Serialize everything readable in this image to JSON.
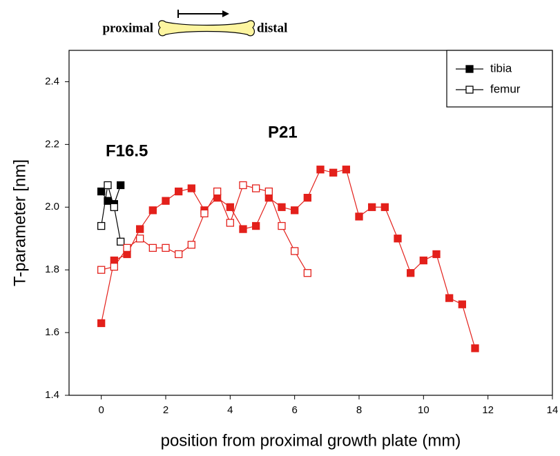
{
  "chart_data": {
    "type": "line",
    "header": {
      "left": "proximal",
      "right": "distal"
    },
    "xlabel": "position from proximal growth plate (mm)",
    "ylabel": "T-parameter [nm]",
    "xlim": [
      -1,
      14
    ],
    "ylim": [
      1.4,
      2.5
    ],
    "xticks": [
      0,
      2,
      4,
      6,
      8,
      10,
      12,
      14
    ],
    "yticks": [
      1.4,
      1.6,
      1.8,
      {
        "value": 2,
        "label": "2.0"
      },
      2.2,
      2.4
    ],
    "legend": [
      {
        "label": "tibia",
        "marker": "filled"
      },
      {
        "label": "femur",
        "marker": "open"
      }
    ],
    "annotations": [
      {
        "text": "F16.5",
        "color": "#000000"
      },
      {
        "text": "P21",
        "color": "#e3201b"
      }
    ],
    "series": [
      {
        "color": "#000000",
        "marker": "filled",
        "x": [
          0,
          0.2,
          0.4,
          0.6
        ],
        "values": [
          2.05,
          2.02,
          2.01,
          2.07
        ]
      },
      {
        "color": "#000000",
        "marker": "open",
        "x": [
          0,
          0.2,
          0.4,
          0.6
        ],
        "values": [
          1.94,
          2.07,
          2.0,
          1.89
        ]
      },
      {
        "color": "#e3201b",
        "marker": "filled",
        "x": [
          0,
          0.4,
          0.8,
          1.2,
          1.6,
          2.0,
          2.4,
          2.8,
          3.2,
          3.6,
          4.0,
          4.4,
          4.8,
          5.2,
          5.6,
          6.0,
          6.4,
          6.8,
          7.2,
          7.6,
          8.0,
          8.4,
          8.8,
          9.2,
          9.6,
          10.0,
          10.4,
          10.8,
          11.2,
          11.6
        ],
        "values": [
          1.63,
          1.83,
          1.85,
          1.93,
          1.99,
          2.02,
          2.05,
          2.06,
          1.99,
          2.03,
          2.0,
          1.93,
          1.94,
          2.03,
          2.0,
          1.99,
          2.03,
          2.12,
          2.11,
          2.12,
          1.97,
          2.0,
          2.0,
          1.9,
          1.79,
          1.83,
          1.85,
          1.71,
          1.69,
          1.55
        ]
      },
      {
        "color": "#e3201b",
        "marker": "open",
        "x": [
          0,
          0.4,
          0.8,
          1.2,
          1.6,
          2.0,
          2.4,
          2.8,
          3.2,
          3.6,
          4.0,
          4.4,
          4.8,
          5.2,
          5.6,
          6.0,
          6.4
        ],
        "values": [
          1.8,
          1.81,
          1.87,
          1.9,
          1.87,
          1.87,
          1.85,
          1.88,
          1.98,
          2.05,
          1.95,
          2.07,
          2.06,
          2.05,
          1.94,
          1.86,
          1.79
        ]
      }
    ]
  }
}
